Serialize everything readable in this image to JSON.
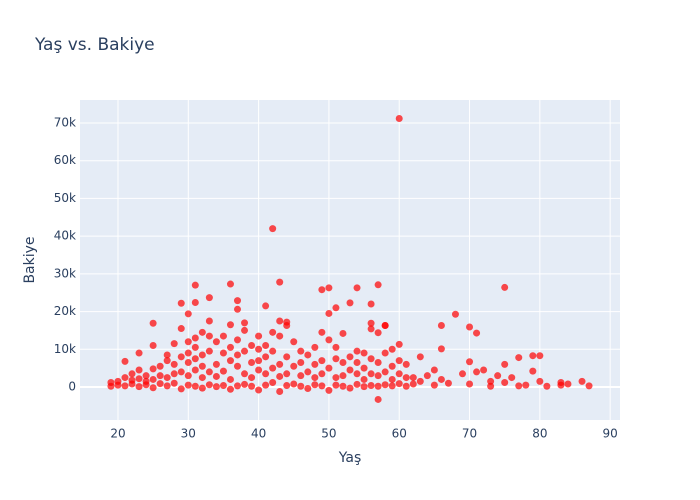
{
  "chart_data": {
    "type": "scatter",
    "title": "Yaş vs. Bakiye",
    "x_label": "Yaş",
    "y_label": "Bakiye",
    "color": "#ff0000",
    "grid": true,
    "xlim": [
      14.6,
      91.4
    ],
    "xticks": [
      20,
      30,
      40,
      50,
      60,
      70,
      80,
      90
    ],
    "ylim": [
      -8750,
      76100
    ],
    "yticks": [
      0,
      {
        "value": 10000,
        "label": "10k"
      },
      {
        "value": 20000,
        "label": "20k"
      },
      {
        "value": 30000,
        "label": "30k"
      },
      {
        "value": 40000,
        "label": "40k"
      },
      {
        "value": 50000,
        "label": "50k"
      },
      {
        "value": 60000,
        "label": "60k"
      },
      {
        "value": 70000,
        "label": "70k"
      }
    ],
    "x": [
      60,
      42,
      43,
      36,
      31,
      57,
      75,
      50,
      54,
      49,
      33,
      37,
      31,
      29,
      53,
      56,
      41,
      51,
      68,
      30,
      37,
      25,
      44,
      43,
      56,
      58,
      66,
      70,
      71,
      57,
      19,
      19,
      20,
      20,
      21,
      21,
      21,
      22,
      22,
      22,
      23,
      23,
      23,
      23,
      24,
      24,
      24,
      25,
      25,
      25,
      25,
      26,
      26,
      26,
      27,
      27,
      27,
      27,
      28,
      28,
      28,
      28,
      29,
      29,
      29,
      29,
      30,
      30,
      30,
      30,
      30,
      31,
      31,
      31,
      31,
      31,
      32,
      32,
      32,
      32,
      32,
      33,
      33,
      33,
      33,
      33,
      34,
      34,
      34,
      34,
      35,
      35,
      35,
      35,
      36,
      36,
      36,
      36,
      36,
      37,
      37,
      37,
      37,
      38,
      38,
      38,
      38,
      38,
      39,
      39,
      39,
      39,
      40,
      40,
      40,
      40,
      40,
      41,
      41,
      41,
      41,
      42,
      42,
      42,
      42,
      43,
      43,
      43,
      43,
      44,
      44,
      44,
      44,
      45,
      45,
      45,
      46,
      46,
      46,
      46,
      47,
      47,
      47,
      48,
      48,
      48,
      48,
      49,
      49,
      49,
      49,
      50,
      50,
      50,
      50,
      51,
      51,
      51,
      51,
      52,
      52,
      52,
      52,
      53,
      53,
      53,
      54,
      54,
      54,
      54,
      55,
      55,
      55,
      55,
      56,
      56,
      56,
      56,
      57,
      57,
      57,
      57,
      58,
      58,
      58,
      58,
      59,
      59,
      59,
      59,
      60,
      60,
      60,
      60,
      61,
      61,
      61,
      62,
      62,
      63,
      63,
      64,
      65,
      65,
      66,
      66,
      67,
      69,
      70,
      70,
      71,
      72,
      73,
      73,
      74,
      75,
      75,
      76,
      77,
      77,
      78,
      79,
      79,
      80,
      80,
      81,
      83,
      83,
      84,
      86,
      87
    ],
    "values": [
      71200,
      42000,
      27800,
      27300,
      27000,
      27100,
      26400,
      26300,
      26300,
      25800,
      23700,
      22900,
      22400,
      22200,
      22300,
      22000,
      21500,
      21000,
      19300,
      19400,
      20600,
      16900,
      17200,
      17500,
      15400,
      16300,
      16300,
      15900,
      14300,
      -3300,
      200,
      1200,
      500,
      1500,
      300,
      2500,
      6800,
      800,
      3500,
      1800,
      100,
      2200,
      9000,
      4500,
      600,
      3000,
      1500,
      -200,
      4800,
      11000,
      2000,
      900,
      5500,
      3000,
      300,
      7000,
      2500,
      8500,
      1000,
      6000,
      11500,
      3500,
      -500,
      4000,
      15500,
      8000,
      500,
      9000,
      12000,
      3000,
      6500,
      200,
      10500,
      13000,
      4500,
      7500,
      -300,
      14500,
      8500,
      2500,
      5500,
      600,
      13500,
      17500,
      4000,
      9500,
      100,
      12000,
      6000,
      2800,
      400,
      13500,
      9000,
      4200,
      -600,
      16500,
      7000,
      2000,
      10500,
      300,
      12500,
      5500,
      8500,
      700,
      17000,
      15000,
      3500,
      9500,
      200,
      11000,
      6500,
      2500,
      -800,
      13500,
      10000,
      4500,
      7000,
      500,
      11000,
      3500,
      8000,
      1200,
      14500,
      9500,
      5000,
      -1200,
      13500,
      6000,
      2800,
      400,
      16300,
      8000,
      3500,
      800,
      12000,
      5500,
      200,
      9500,
      3000,
      6500,
      -400,
      8500,
      4000,
      600,
      10500,
      2500,
      6000,
      300,
      14500,
      7000,
      3500,
      -900,
      19500,
      12500,
      5000,
      500,
      10500,
      7500,
      2500,
      200,
      14200,
      6500,
      3000,
      -300,
      8000,
      4500,
      700,
      9500,
      3500,
      6500,
      100,
      9000,
      5000,
      2000,
      400,
      16900,
      7500,
      3500,
      200,
      14400,
      6500,
      3000,
      600,
      16300,
      9000,
      4000,
      300,
      10000,
      5500,
      2000,
      900,
      11300,
      7000,
      3500,
      200,
      6000,
      2500,
      800,
      2500,
      1500,
      8000,
      3000,
      500,
      4500,
      10100,
      2000,
      1000,
      3500,
      6700,
      800,
      4000,
      4500,
      200,
      1500,
      3000,
      1200,
      6000,
      2500,
      7800,
      300,
      500,
      8300,
      4200,
      8300,
      1500,
      200,
      1200,
      500,
      800,
      1500,
      300
    ]
  }
}
